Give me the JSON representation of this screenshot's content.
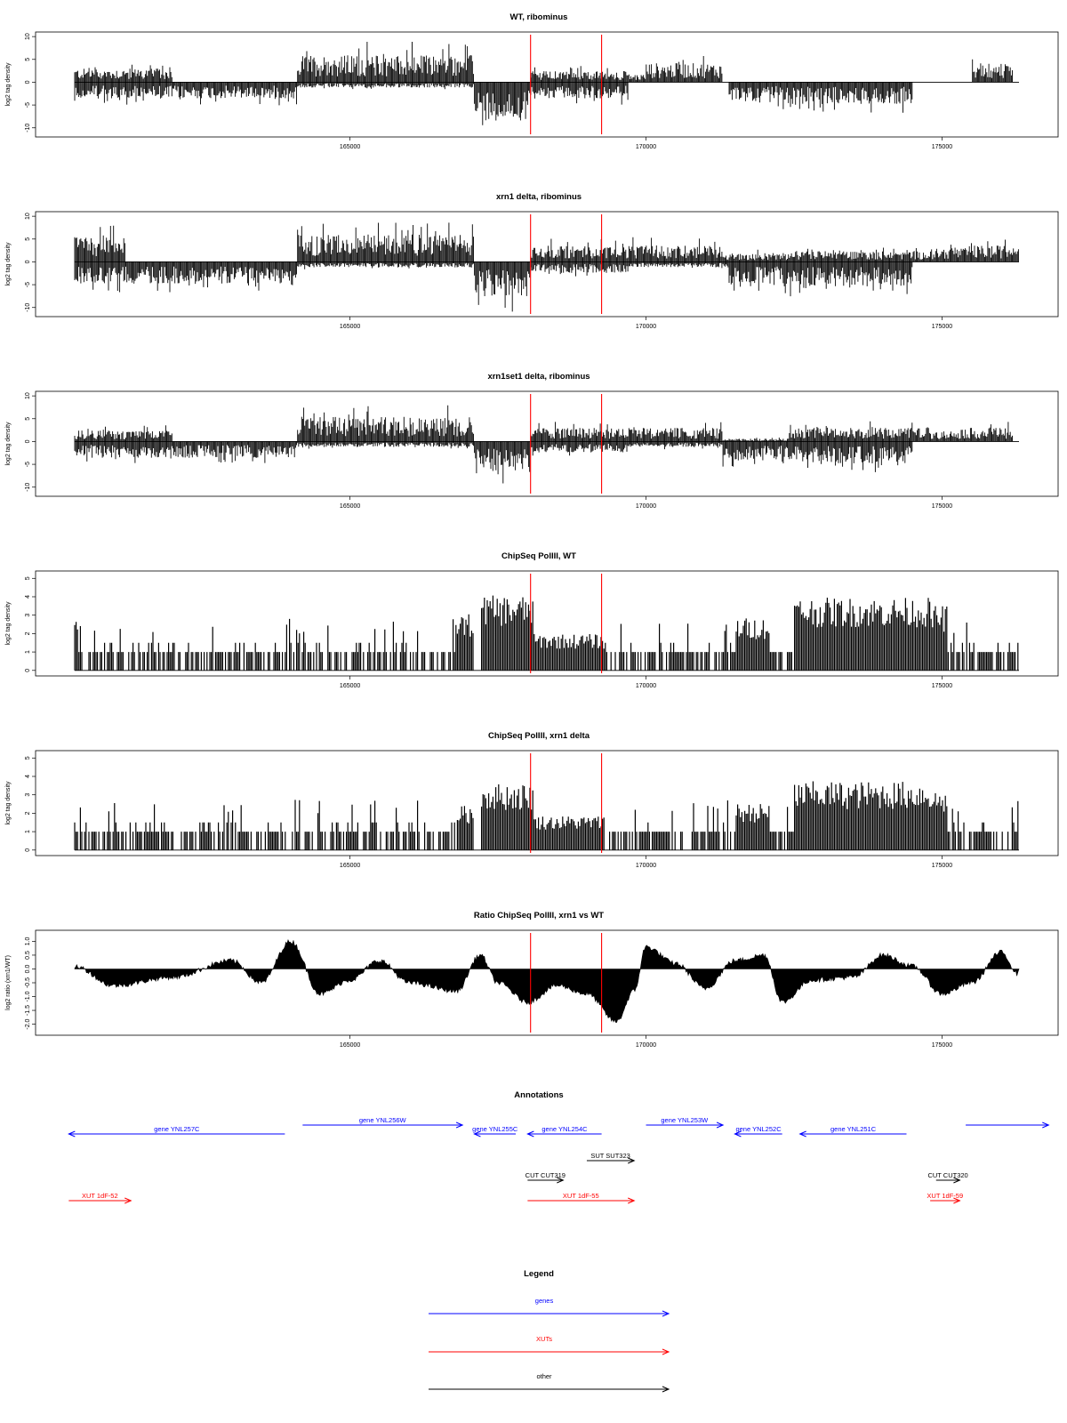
{
  "colors": {
    "gene": "#0000ff",
    "xut": "#ff0000",
    "other": "#000000",
    "marker": "#ff0000",
    "signal": "#000000"
  },
  "x_range": [
    160350,
    176300
  ],
  "markers": [
    168050,
    169250
  ],
  "x_ticks": [
    "165000",
    "170000",
    "175000"
  ],
  "chart_data": [
    {
      "type": "bar",
      "title": "WT, ribominus",
      "ylabel": "log2 tag density",
      "ylim": [
        -12,
        11
      ],
      "y_ticks": [
        "10",
        "5",
        "0",
        "-5",
        "-10"
      ],
      "strand_profile": {
        "watson": [
          [
            160350,
            162000,
            2.5
          ],
          [
            162000,
            164100,
            0
          ],
          [
            164100,
            167100,
            5
          ],
          [
            167100,
            168050,
            0
          ],
          [
            168050,
            169700,
            2
          ],
          [
            169700,
            170000,
            1.5
          ],
          [
            170000,
            171300,
            3.5
          ],
          [
            171300,
            175500,
            0
          ],
          [
            175500,
            176200,
            3
          ]
        ],
        "crick": [
          [
            160350,
            164100,
            -3
          ],
          [
            164100,
            167100,
            -1
          ],
          [
            167100,
            168050,
            -7
          ],
          [
            168050,
            169700,
            -3
          ],
          [
            169700,
            171400,
            0
          ],
          [
            171400,
            172300,
            -3.5
          ],
          [
            172300,
            174500,
            -4
          ],
          [
            174500,
            176300,
            0
          ]
        ]
      }
    },
    {
      "type": "bar",
      "title": "xrn1 delta, ribominus",
      "ylabel": "log2 tag density",
      "ylim": [
        -12,
        11
      ],
      "y_ticks": [
        "10",
        "5",
        "0",
        "-5",
        "-10"
      ],
      "strand_profile": {
        "watson": [
          [
            160350,
            161200,
            4.5
          ],
          [
            161200,
            164100,
            0
          ],
          [
            164100,
            167100,
            5
          ],
          [
            167100,
            168050,
            0
          ],
          [
            168050,
            171300,
            3
          ],
          [
            171300,
            172400,
            1.5
          ],
          [
            172400,
            174900,
            2
          ],
          [
            174900,
            175400,
            2.5
          ],
          [
            175400,
            176300,
            3
          ]
        ],
        "crick": [
          [
            160350,
            164100,
            -4
          ],
          [
            164100,
            167100,
            -1
          ],
          [
            167100,
            168050,
            -6.5
          ],
          [
            168050,
            169700,
            -2
          ],
          [
            169700,
            171400,
            -1
          ],
          [
            171400,
            172300,
            -4
          ],
          [
            172300,
            174500,
            -4.5
          ],
          [
            174500,
            176300,
            0
          ]
        ]
      }
    },
    {
      "type": "bar",
      "title": "xrn1set1 delta, ribominus",
      "ylabel": "log2 tag density",
      "ylim": [
        -12,
        11
      ],
      "y_ticks": [
        "10",
        "5",
        "0",
        "-5",
        "-10"
      ],
      "strand_profile": {
        "watson": [
          [
            160350,
            162000,
            2
          ],
          [
            162000,
            164100,
            0
          ],
          [
            164100,
            167100,
            4.5
          ],
          [
            167100,
            168050,
            0
          ],
          [
            168050,
            171300,
            2.5
          ],
          [
            171300,
            172400,
            0.5
          ],
          [
            172400,
            174800,
            2.5
          ],
          [
            174800,
            175300,
            2
          ],
          [
            175300,
            176200,
            2.5
          ]
        ],
        "crick": [
          [
            160350,
            164100,
            -3
          ],
          [
            164100,
            167100,
            -1
          ],
          [
            167100,
            168050,
            -6
          ],
          [
            168050,
            169700,
            -2
          ],
          [
            169700,
            171300,
            -1
          ],
          [
            171300,
            172300,
            -3.5
          ],
          [
            172300,
            174500,
            -4
          ],
          [
            174500,
            176300,
            0
          ]
        ]
      }
    },
    {
      "type": "bar",
      "title": "ChipSeq PolIII, WT",
      "ylabel": "log2 tag density",
      "ylim": [
        -0.3,
        5.4
      ],
      "y_ticks": [
        "5",
        "4",
        "3",
        "2",
        "1",
        "0"
      ],
      "profile": [
        [
          160350,
          166800,
          1.1
        ],
        [
          166800,
          167100,
          2.8
        ],
        [
          167100,
          167200,
          0
        ],
        [
          167200,
          168100,
          3.7
        ],
        [
          168100,
          169300,
          1.8
        ],
        [
          169300,
          171500,
          0.9
        ],
        [
          171500,
          172100,
          2.6
        ],
        [
          172100,
          172500,
          0.8
        ],
        [
          172500,
          174800,
          3.6
        ],
        [
          174800,
          175100,
          3.2
        ],
        [
          175100,
          176300,
          1.1
        ]
      ]
    },
    {
      "type": "bar",
      "title": "ChipSeq PolIII, xrn1 delta",
      "ylabel": "log2 tag density",
      "ylim": [
        -0.3,
        5.4
      ],
      "y_ticks": [
        "5",
        "4",
        "3",
        "2",
        "1",
        "0"
      ],
      "profile": [
        [
          160350,
          166800,
          1.0
        ],
        [
          166800,
          167100,
          2.2
        ],
        [
          167100,
          167200,
          0
        ],
        [
          167200,
          168100,
          3.3
        ],
        [
          168100,
          169300,
          1.7
        ],
        [
          169300,
          171500,
          0.7
        ],
        [
          171500,
          172100,
          2.3
        ],
        [
          172100,
          172500,
          0.6
        ],
        [
          172500,
          174800,
          3.4
        ],
        [
          174800,
          175100,
          3.0
        ],
        [
          175100,
          176300,
          0.8
        ]
      ]
    },
    {
      "type": "area",
      "title": "Ratio ChipSeq PolIII, xrn1 vs WT",
      "ylabel": "log2 ratio (xrn1/WT)",
      "ylim": [
        -2.4,
        1.4
      ],
      "y_ticks": [
        "1.0",
        "0.5",
        "0.0",
        "-0.5",
        "-1.0",
        "-1.5",
        "-2.0"
      ],
      "ratio_knots": [
        [
          160350,
          0.1
        ],
        [
          161000,
          -0.6
        ],
        [
          162000,
          -0.3
        ],
        [
          163000,
          0.3
        ],
        [
          163500,
          -0.5
        ],
        [
          164000,
          1.0
        ],
        [
          164500,
          -0.9
        ],
        [
          165000,
          -0.4
        ],
        [
          165500,
          0.3
        ],
        [
          166000,
          -0.5
        ],
        [
          166800,
          -0.8
        ],
        [
          167200,
          0.5
        ],
        [
          167500,
          -0.5
        ],
        [
          168000,
          -1.2
        ],
        [
          168500,
          -0.6
        ],
        [
          169000,
          -0.9
        ],
        [
          169500,
          -1.9
        ],
        [
          169800,
          -0.8
        ],
        [
          170000,
          0.8
        ],
        [
          170500,
          0.2
        ],
        [
          171000,
          -0.7
        ],
        [
          171500,
          0.3
        ],
        [
          172000,
          0.5
        ],
        [
          172300,
          -1.2
        ],
        [
          172800,
          -0.4
        ],
        [
          173500,
          -0.3
        ],
        [
          174000,
          0.5
        ],
        [
          174500,
          0.1
        ],
        [
          175000,
          -0.9
        ],
        [
          175500,
          -0.5
        ],
        [
          176000,
          0.6
        ],
        [
          176300,
          -0.2
        ]
      ]
    }
  ],
  "annotations": {
    "title": "Annotations",
    "features": [
      {
        "label": "gene YNL257C",
        "kind": "gene",
        "start": 160250,
        "end": 163900,
        "strand": "-"
      },
      {
        "label": "gene YNL256W",
        "kind": "gene",
        "start": 164200,
        "end": 166900,
        "strand": "+"
      },
      {
        "label": "gene YNL255C",
        "kind": "gene",
        "start": 167100,
        "end": 167800,
        "strand": "-"
      },
      {
        "label": "gene YNL254C",
        "kind": "gene",
        "start": 168000,
        "end": 169250,
        "strand": "-"
      },
      {
        "label": "gene YNL253W",
        "kind": "gene",
        "start": 170000,
        "end": 171300,
        "strand": "+"
      },
      {
        "label": "gene YNL252C",
        "kind": "gene",
        "start": 171500,
        "end": 172300,
        "strand": "-"
      },
      {
        "label": "gene YNL251C",
        "kind": "gene",
        "start": 172600,
        "end": 174400,
        "strand": "-"
      },
      {
        "label": "",
        "kind": "gene",
        "start": 175400,
        "end": 176800,
        "strand": "+"
      },
      {
        "label": "SUT SUT323",
        "kind": "other",
        "start": 169000,
        "end": 169800,
        "strand": "+"
      },
      {
        "label": "CUT CUT319",
        "kind": "other",
        "start": 168000,
        "end": 168600,
        "strand": "+"
      },
      {
        "label": "CUT CUT320",
        "kind": "other",
        "start": 174900,
        "end": 175300,
        "strand": "+"
      },
      {
        "label": "XUT 1dF-52",
        "kind": "xut",
        "start": 160250,
        "end": 161300,
        "strand": "+"
      },
      {
        "label": "XUT 1dF-55",
        "kind": "xut",
        "start": 168000,
        "end": 169800,
        "strand": "+"
      },
      {
        "label": "XUT 1dF-59",
        "kind": "xut",
        "start": 174800,
        "end": 175300,
        "strand": "+"
      }
    ]
  },
  "legend": {
    "title": "Legend",
    "items": [
      {
        "label": "genes",
        "kind": "gene"
      },
      {
        "label": "XUTs",
        "kind": "xut"
      },
      {
        "label": "other",
        "kind": "other"
      }
    ]
  }
}
